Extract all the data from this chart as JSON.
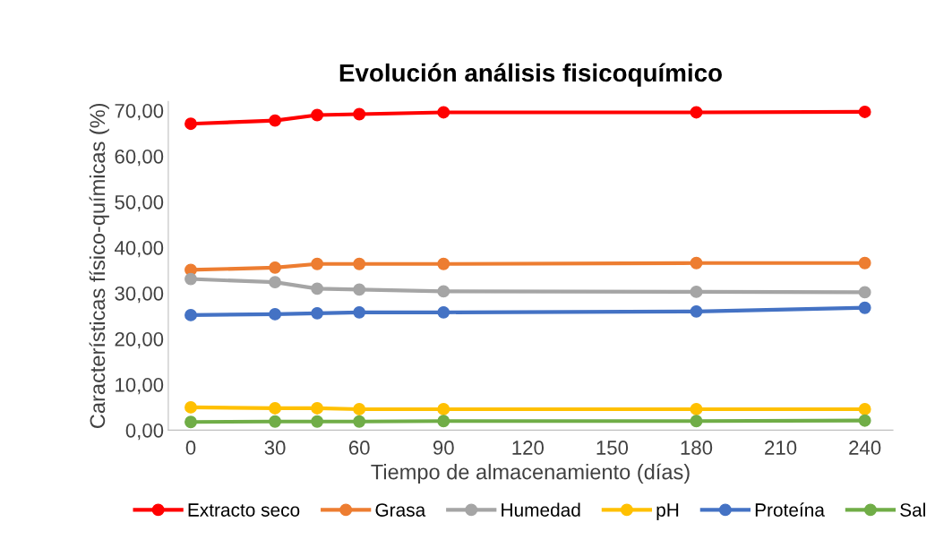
{
  "chart_data": {
    "type": "line",
    "title": "Evolución análisis fisicoquímico",
    "xlabel": "Tiempo de almacenamiento (días)",
    "ylabel": "Características físico-químicas (%)",
    "x": [
      0,
      30,
      45,
      60,
      90,
      180,
      240
    ],
    "series": [
      {
        "name": "Extracto seco",
        "color": "#ff0000",
        "values": [
          67.1,
          67.8,
          69.0,
          69.2,
          69.6,
          69.6,
          69.7
        ]
      },
      {
        "name": "Grasa",
        "color": "#ed7d31",
        "values": [
          35.1,
          35.6,
          36.4,
          36.4,
          36.4,
          36.6,
          36.6
        ]
      },
      {
        "name": "Humedad",
        "color": "#a5a5a5",
        "values": [
          33.1,
          32.4,
          31.0,
          30.8,
          30.4,
          30.3,
          30.2
        ]
      },
      {
        "name": "pH",
        "color": "#ffc000",
        "values": [
          5.0,
          4.8,
          4.8,
          4.6,
          4.6,
          4.6,
          4.6
        ]
      },
      {
        "name": "Proteína",
        "color": "#4472c4",
        "values": [
          25.2,
          25.4,
          25.6,
          25.8,
          25.8,
          26.0,
          26.8
        ]
      },
      {
        "name": "Sal",
        "color": "#70ad47",
        "values": [
          1.8,
          1.9,
          1.9,
          1.9,
          2.0,
          2.0,
          2.1
        ]
      }
    ],
    "xlim": [
      -8,
      250
    ],
    "xticks": [
      0,
      30,
      60,
      90,
      120,
      150,
      180,
      210,
      240
    ],
    "ylim": [
      0,
      72
    ],
    "yticks": [
      {
        "value": 0,
        "label": "0,00"
      },
      {
        "value": 10,
        "label": "10,00"
      },
      {
        "value": 20,
        "label": "20,00"
      },
      {
        "value": 30,
        "label": "30,00"
      },
      {
        "value": 40,
        "label": "40,00"
      },
      {
        "value": 50,
        "label": "50,00"
      },
      {
        "value": 60,
        "label": "60,00"
      },
      {
        "value": 70,
        "label": "70,00"
      }
    ],
    "grid": false,
    "legend": "bottom",
    "marker": "circle",
    "line_style": "solid"
  }
}
